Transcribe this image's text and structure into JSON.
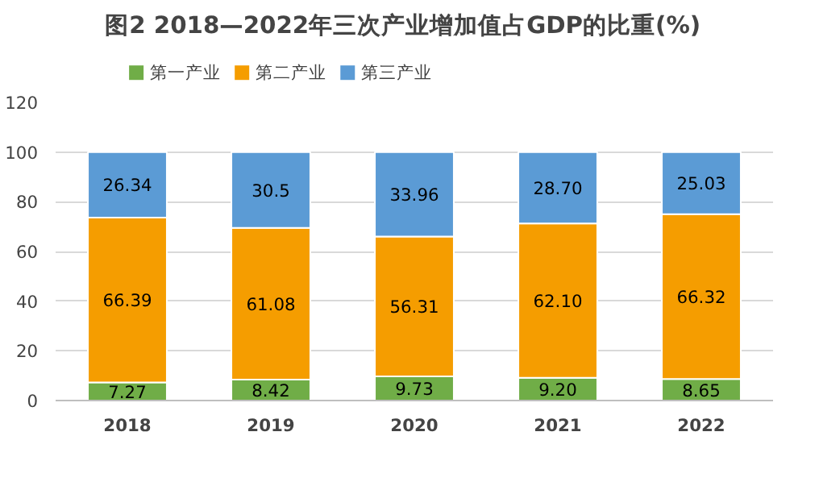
{
  "chart_data": {
    "type": "bar",
    "title": "图2    2018—2022年三次产业增加值占GDP的比重(%)",
    "categories": [
      "2018",
      "2019",
      "2020",
      "2021",
      "2022"
    ],
    "stacked": true,
    "ylim": [
      0,
      120
    ],
    "yticks": [
      0,
      20,
      40,
      60,
      80,
      100,
      120
    ],
    "grid": "y",
    "legend": "top left",
    "series": [
      {
        "name": "第一产业",
        "color": "#70ad47",
        "values": [
          7.27,
          8.42,
          9.73,
          9.2,
          8.65
        ],
        "value_labels": [
          "7.27",
          "8.42",
          "9.73",
          "9.20",
          "8.65"
        ]
      },
      {
        "name": "第二产业",
        "color": "#f59d00",
        "values": [
          66.39,
          61.08,
          56.31,
          62.1,
          66.32
        ],
        "value_labels": [
          "66.39",
          "61.08",
          "56.31",
          "62.10",
          "66.32"
        ]
      },
      {
        "name": "第三产业",
        "color": "#5b9bd5",
        "values": [
          26.34,
          30.5,
          33.96,
          28.7,
          25.03
        ],
        "value_labels": [
          "26.34",
          "30.5",
          "33.96",
          "28.70",
          "25.03"
        ]
      }
    ]
  }
}
